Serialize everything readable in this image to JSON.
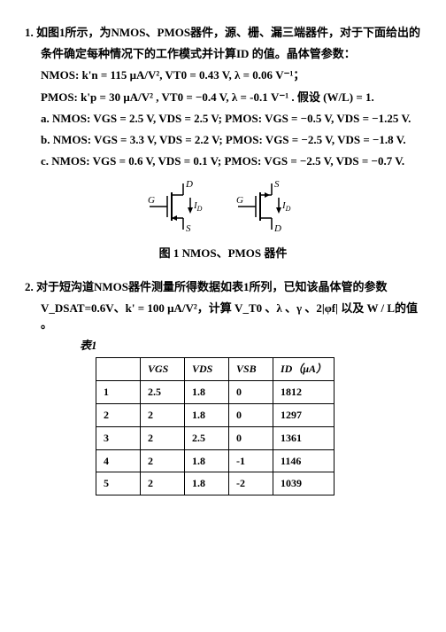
{
  "p1": {
    "num": "1.",
    "l1": "如图1所示，为NMOS、PMOS器件，源、栅、漏三端器件，对于下面给出的",
    "l2": "条件确定每种情况下的工作模式并计算ID 的值。晶体管参数：",
    "nmos_params": "NMOS: k'n = 115 μA/V², VT0 = 0.43 V,  λ = 0.06 V⁻¹；",
    "pmos_params": "PMOS: k'p = 30 μA/V² , VT0 = −0.4 V,  λ = -0.1 V⁻¹ . 假设 (W/L) = 1.",
    "a": "a. NMOS: VGS = 2.5 V, VDS = 2.5 V;    PMOS: VGS = −0.5 V, VDS = −1.25 V.",
    "b": "b. NMOS: VGS = 3.3 V, VDS = 2.2 V;    PMOS: VGS = −2.5 V, VDS = −1.8 V.",
    "c": "c. NMOS: VGS = 0.6 V, VDS = 0.1 V;    PMOS: VGS = −2.5 V, VDS = −0.7 V.",
    "caption": "图 1 NMOS、PMOS 器件"
  },
  "labels": {
    "G": "G",
    "D": "D",
    "S": "S",
    "ID": "I",
    "Dsub": "D"
  },
  "p2": {
    "num": "2.",
    "l1": "对于短沟道NMOS器件测量所得数据如表1所列，已知该晶体管的参数",
    "l2": "V_DSAT=0.6V、k' = 100 μA/V²，计算  V_T0 、λ 、γ 、2|φf| 以及  W / L的值 。",
    "table_label": "表1"
  },
  "table": {
    "headers": [
      "",
      "VGS",
      "VDS",
      "VSB",
      "ID（μA）"
    ],
    "rows": [
      [
        "1",
        "2.5",
        "1.8",
        "0",
        "1812"
      ],
      [
        "2",
        "2",
        "1.8",
        "0",
        "1297"
      ],
      [
        "3",
        "2",
        "2.5",
        "0",
        "1361"
      ],
      [
        "4",
        "2",
        "1.8",
        "-1",
        "1146"
      ],
      [
        "5",
        "2",
        "1.8",
        "-2",
        "1039"
      ]
    ]
  }
}
